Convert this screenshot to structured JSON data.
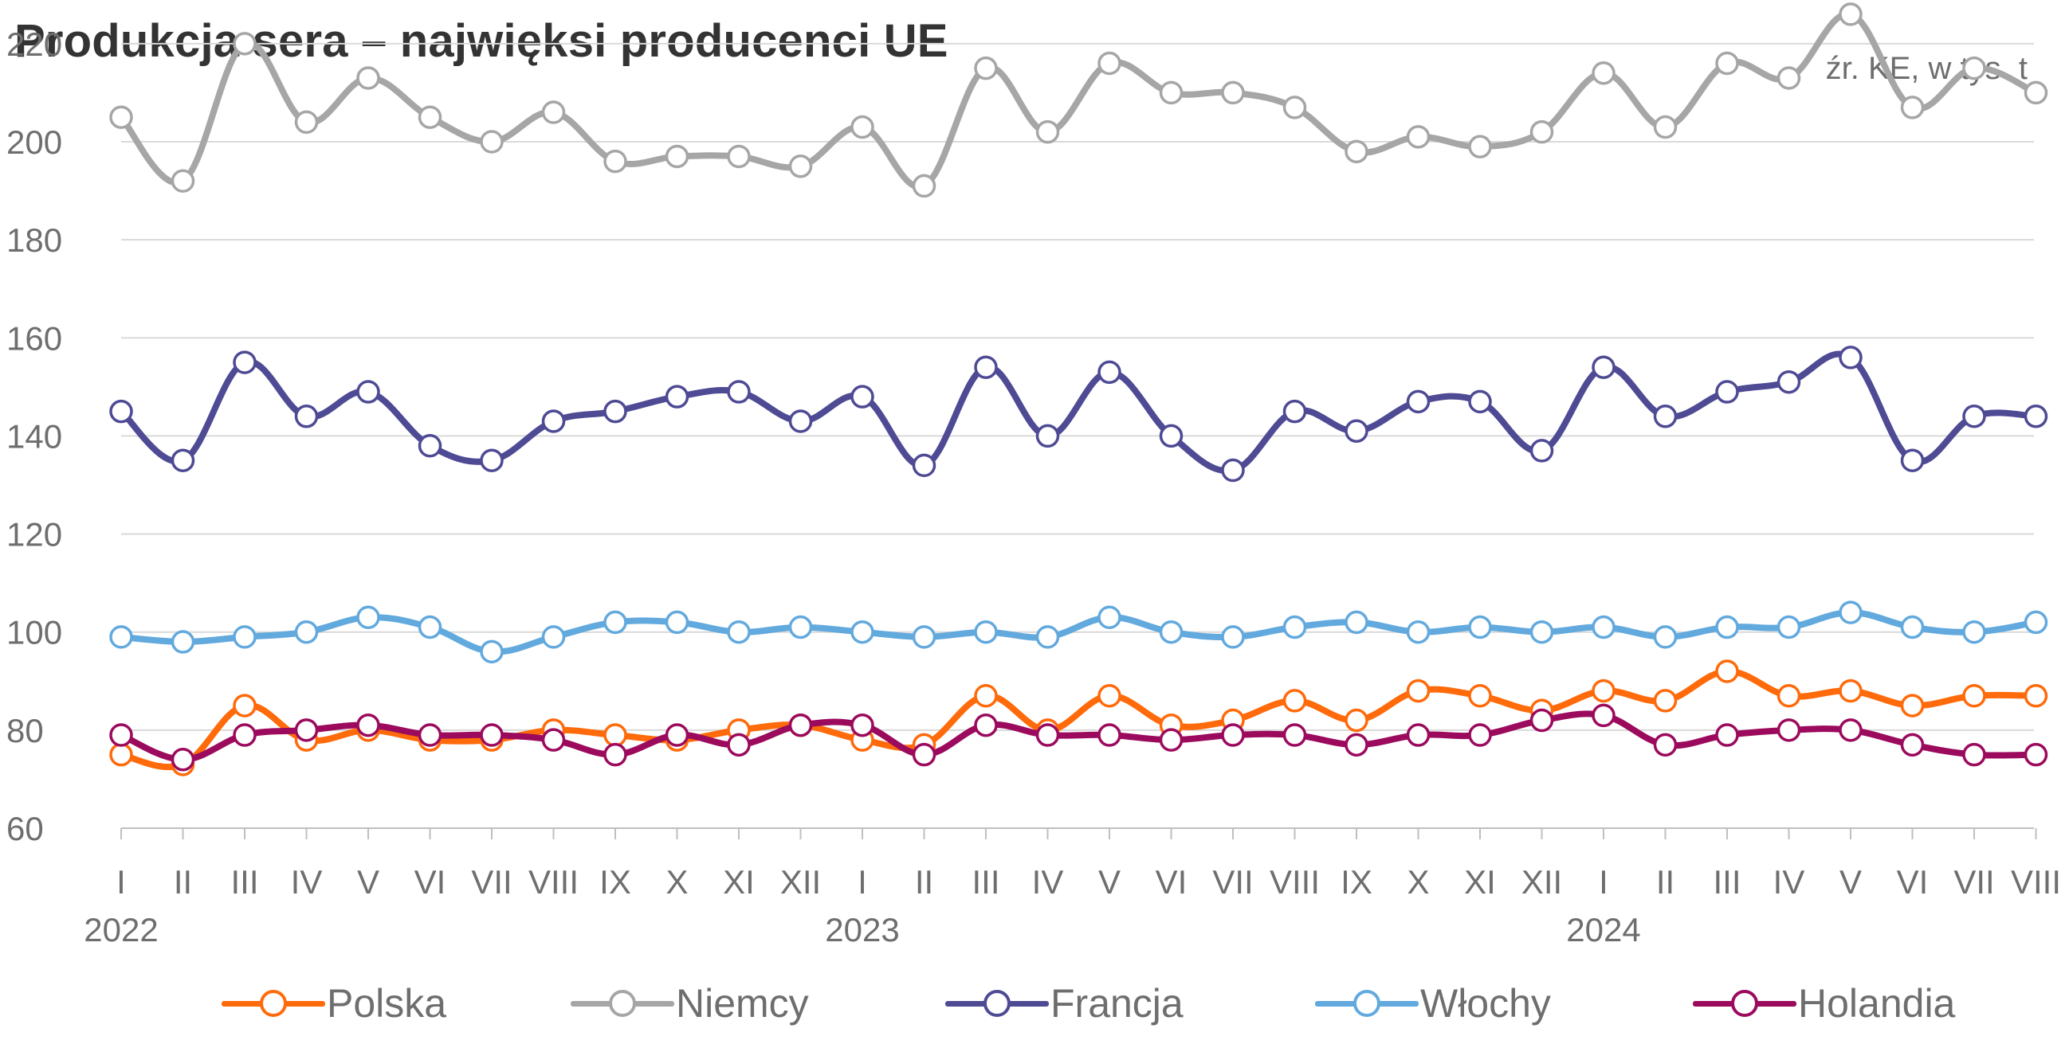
{
  "title": "Produkcja sera – najwięksi producenci UE",
  "source_note": "źr. KE, w tys. t",
  "chart_data": {
    "type": "line",
    "title": "Produkcja sera – najwięksi producenci UE",
    "unit_note": "źr. KE, w tys. t",
    "x_months": [
      "I",
      "II",
      "III",
      "IV",
      "V",
      "VI",
      "VII",
      "VIII",
      "IX",
      "X",
      "XI",
      "XII",
      "I",
      "II",
      "III",
      "IV",
      "V",
      "VI",
      "VII",
      "VIII",
      "IX",
      "X",
      "XI",
      "XII",
      "I",
      "II",
      "III",
      "IV",
      "V",
      "VI",
      "VII",
      "VIII"
    ],
    "x_years": [
      {
        "label": "2022",
        "index": 0
      },
      {
        "label": "2023",
        "index": 12
      },
      {
        "label": "2024",
        "index": 24
      }
    ],
    "ylim": [
      60,
      230
    ],
    "yticks": [
      60,
      80,
      100,
      120,
      140,
      160,
      180,
      200,
      220
    ],
    "grid": true,
    "legend_position": "bottom",
    "series": [
      {
        "name": "Niemcy",
        "color": "#a6a6a6",
        "values": [
          205,
          192,
          220,
          204,
          213,
          205,
          200,
          206,
          196,
          197,
          197,
          195,
          203,
          191,
          215,
          202,
          216,
          210,
          210,
          207,
          198,
          201,
          199,
          202,
          214,
          203,
          216,
          213,
          226,
          207,
          215,
          210
        ]
      },
      {
        "name": "Francja",
        "color": "#4e4a94",
        "values": [
          145,
          135,
          155,
          144,
          149,
          138,
          135,
          143,
          145,
          148,
          149,
          143,
          148,
          134,
          154,
          140,
          153,
          140,
          133,
          145,
          141,
          147,
          147,
          137,
          154,
          144,
          149,
          151,
          156,
          135,
          144,
          144
        ]
      },
      {
        "name": "Włochy",
        "color": "#62a9de",
        "values": [
          99,
          98,
          99,
          100,
          103,
          101,
          96,
          99,
          102,
          102,
          100,
          101,
          100,
          99,
          100,
          99,
          103,
          100,
          99,
          101,
          102,
          100,
          101,
          100,
          101,
          99,
          101,
          101,
          104,
          101,
          100,
          102
        ]
      },
      {
        "name": "Polska",
        "color": "#ff6a0a",
        "values": [
          75,
          73,
          85,
          78,
          80,
          78,
          78,
          80,
          79,
          78,
          80,
          81,
          78,
          77,
          87,
          80,
          87,
          81,
          82,
          86,
          82,
          88,
          87,
          84,
          88,
          86,
          92,
          87,
          88,
          85,
          87,
          87
        ]
      },
      {
        "name": "Holandia",
        "color": "#9b0a5d",
        "values": [
          79,
          74,
          79,
          80,
          81,
          79,
          79,
          78,
          75,
          79,
          77,
          81,
          81,
          75,
          81,
          79,
          79,
          78,
          79,
          79,
          77,
          79,
          79,
          82,
          83,
          77,
          79,
          80,
          80,
          77,
          75,
          75
        ]
      }
    ]
  },
  "legend": [
    {
      "label": "Polska",
      "color": "#ff6a0a"
    },
    {
      "label": "Niemcy",
      "color": "#a6a6a6"
    },
    {
      "label": "Francja",
      "color": "#4e4a94"
    },
    {
      "label": "Włochy",
      "color": "#62a9de"
    },
    {
      "label": "Holandia",
      "color": "#9b0a5d"
    }
  ]
}
